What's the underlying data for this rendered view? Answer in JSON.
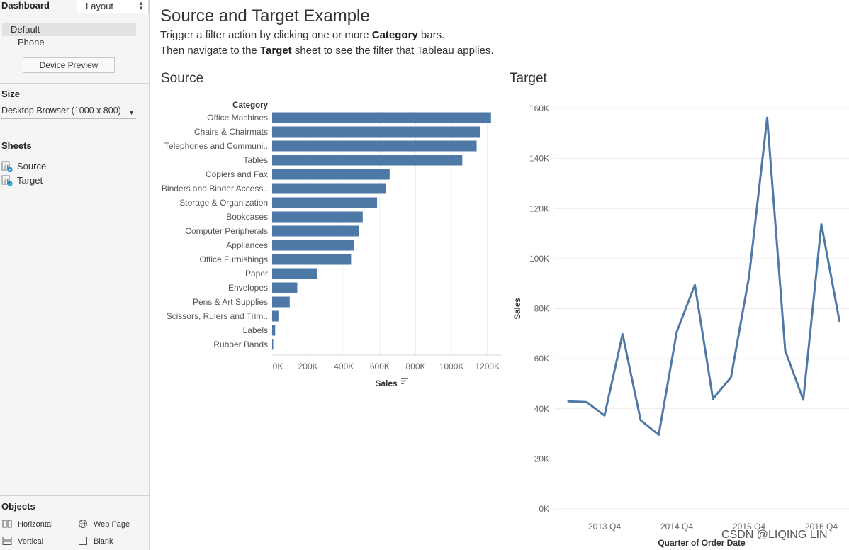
{
  "panel": {
    "tab_dashboard": "Dashboard",
    "tab_layout": "Layout",
    "devices": [
      "Default",
      "Phone"
    ],
    "device_preview_label": "Device Preview",
    "size_title": "Size",
    "size_value": "Desktop Browser (1000 x 800)",
    "sheets_title": "Sheets",
    "sheets": [
      "Source",
      "Target"
    ],
    "objects_title": "Objects",
    "objects": {
      "horizontal": "Horizontal",
      "web_page": "Web Page",
      "vertical": "Vertical",
      "blank": "Blank"
    }
  },
  "dashboard": {
    "title": "Source and Target Example",
    "line1_pre": "Trigger a filter action by clicking one or more ",
    "line1_bold": "Category",
    "line1_post": " bars.",
    "line2_pre": "Then navigate to the ",
    "line2_bold": "Target",
    "line2_post": " sheet to see the filter that Tableau applies."
  },
  "source_title": "Source",
  "target_title": "Target",
  "watermark": "CSDN @LIQING LIN",
  "colors": {
    "bar": "#4e79a7",
    "line": "#4e79a7",
    "gridline": "#ececec"
  },
  "chart_data": [
    {
      "type": "bar",
      "orientation": "horizontal",
      "header_label": "Category",
      "categories": [
        "Office Machines",
        "Chairs & Chairmats",
        "Telephones and Communi..",
        "Tables",
        "Copiers and Fax",
        "Binders and Binder Access..",
        "Storage & Organization",
        "Bookcases",
        "Computer Peripherals",
        "Appliances",
        "Office Furnishings",
        "Paper",
        "Envelopes",
        "Pens & Art Supplies",
        "Scissors, Rulers and Trim..",
        "Labels",
        "Rubber Bands"
      ],
      "values": [
        1220000,
        1160000,
        1140000,
        1060000,
        655000,
        635000,
        585000,
        505000,
        485000,
        455000,
        440000,
        250000,
        140000,
        98000,
        35000,
        17000,
        5000
      ],
      "xlabel": "Sales",
      "xticks": [
        "0K",
        "200K",
        "400K",
        "600K",
        "800K",
        "1000K",
        "1200K"
      ],
      "xlim": [
        0,
        1280000
      ],
      "grid": true
    },
    {
      "type": "line",
      "x": [
        "2013 Q2",
        "2013 Q3",
        "2013 Q4",
        "2014 Q1",
        "2014 Q2",
        "2014 Q3",
        "2014 Q4",
        "2015 Q1",
        "2015 Q2",
        "2015 Q3",
        "2015 Q4",
        "2016 Q1",
        "2016 Q2",
        "2016 Q3",
        "2016 Q4",
        "2017 Q1"
      ],
      "values": [
        43000,
        42700,
        37300,
        69800,
        35400,
        29600,
        70800,
        89500,
        44000,
        52600,
        92900,
        156300,
        63200,
        43600,
        113700,
        75100
      ],
      "xticks": [
        "2013 Q4",
        "2014 Q4",
        "2015 Q4",
        "2016 Q4"
      ],
      "xlabel": "Quarter of Order Date",
      "ylabel": "Sales",
      "yticks": [
        "0K",
        "20K",
        "40K",
        "60K",
        "80K",
        "100K",
        "120K",
        "140K",
        "160K"
      ],
      "ylim": [
        0,
        160000
      ],
      "grid": true
    }
  ]
}
